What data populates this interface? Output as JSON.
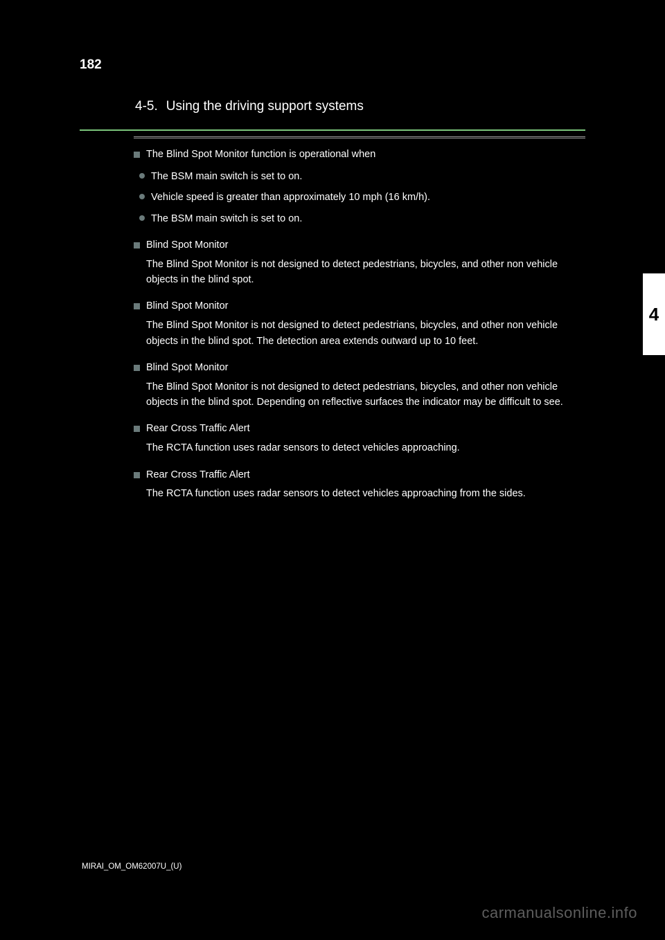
{
  "page": {
    "number": "182",
    "chapter_num": "4-5.",
    "chapter_title": "Using the driving support systems",
    "side_tab": "4"
  },
  "sections": [
    {
      "title": "The Blind Spot Monitor function is operational when",
      "body": null,
      "subs": [
        "The BSM main switch is set to on.",
        "Vehicle speed is greater than approximately 10 mph (16 km/h).",
        "The BSM main switch is set to on."
      ]
    },
    {
      "title": "Blind Spot Monitor",
      "body": "The Blind Spot Monitor is not designed to detect pedestrians, bicycles, and other non vehicle objects in the blind spot.",
      "subs": []
    },
    {
      "title": "Blind Spot Monitor",
      "body": "The Blind Spot Monitor is not designed to detect pedestrians, bicycles, and other non vehicle objects in the blind spot. The detection area extends outward up to 10 feet.",
      "subs": []
    },
    {
      "title": "Blind Spot Monitor",
      "body": "The Blind Spot Monitor is not designed to detect pedestrians, bicycles, and other non vehicle objects in the blind spot. Depending on reflective surfaces the indicator may be difficult to see.",
      "subs": []
    },
    {
      "title": "Rear Cross Traffic Alert",
      "body": "The RCTA function uses radar sensors to detect vehicles approaching.",
      "subs": []
    },
    {
      "title": "Rear Cross Traffic Alert",
      "body": "The RCTA function uses radar sensors to detect vehicles approaching from the sides.",
      "subs": []
    }
  ],
  "footer": {
    "filename": "MIRAI_OM_OM62007U_(U)",
    "watermark": "carmanualsonline.info"
  },
  "colors": {
    "background": "#000000",
    "text": "#ffffff",
    "accent_green": "#7bc67b",
    "bullet": "#6a7a7a",
    "watermark": "#9c9c9c"
  }
}
